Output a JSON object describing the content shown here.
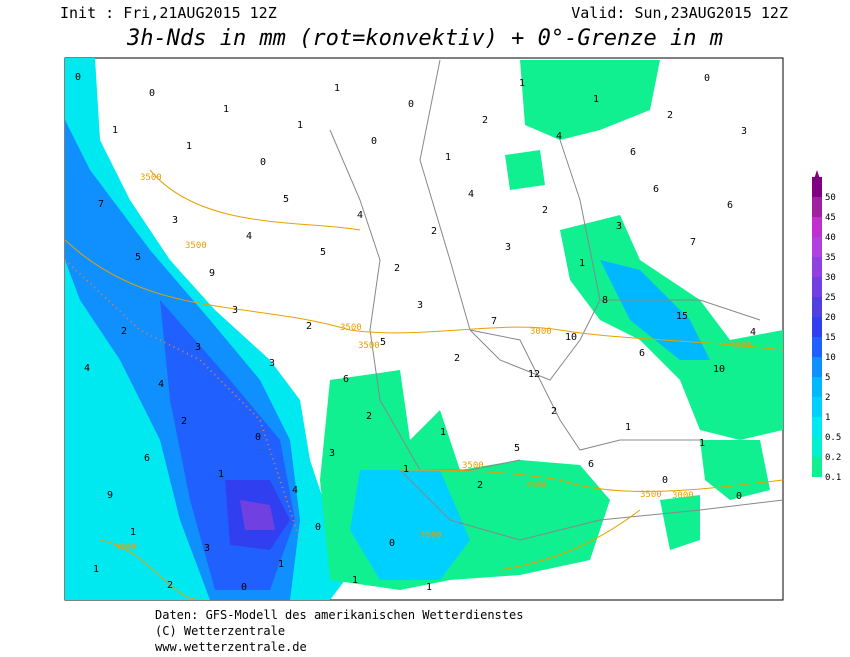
{
  "header": {
    "init": "Init : Fri,21AUG2015 12Z",
    "valid": "Valid: Sun,23AUG2015 12Z",
    "title": "3h-Nds in mm (rot=konvektiv) + 0°-Grenze in m"
  },
  "scale": {
    "levels": [
      0.1,
      0.2,
      0.5,
      1,
      2,
      5,
      10,
      15,
      20,
      25,
      30,
      35,
      40,
      45,
      50
    ],
    "colors": [
      "#10f090",
      "#00f0d0",
      "#00e8f0",
      "#00d0ff",
      "#00b8ff",
      "#1090ff",
      "#2060ff",
      "#3040f0",
      "#5040e0",
      "#7040e0",
      "#9040e0",
      "#b040e0",
      "#c030d0",
      "#a020a0",
      "#800080"
    ]
  },
  "contour_labels": [
    3500,
    3500,
    3500,
    3500,
    3500,
    3500,
    3500,
    3000,
    3000,
    3000,
    3500,
    3000
  ],
  "precip_labels": [
    0,
    1,
    0,
    1,
    1,
    0,
    1,
    1,
    0,
    0,
    1,
    2,
    1,
    4,
    1,
    6,
    2,
    0,
    3,
    7,
    5,
    3,
    9,
    4,
    5,
    5,
    4,
    2,
    2,
    4,
    3,
    2,
    1,
    3,
    6,
    7,
    6,
    4,
    2,
    4,
    3,
    3,
    3,
    2,
    6,
    5,
    3,
    2,
    7,
    12,
    10,
    8,
    6,
    15,
    10,
    4,
    9,
    6,
    2,
    1,
    0,
    4,
    3,
    2,
    1,
    1,
    2,
    5,
    2,
    6,
    1,
    0,
    1,
    0,
    1,
    1,
    2,
    3,
    0,
    1,
    0,
    1,
    0,
    1
  ],
  "footer": [
    "Daten: GFS-Modell des amerikanischen Wetterdienstes",
    "(C) Wetterzentrale",
    "www.wetterzentrale.de"
  ]
}
